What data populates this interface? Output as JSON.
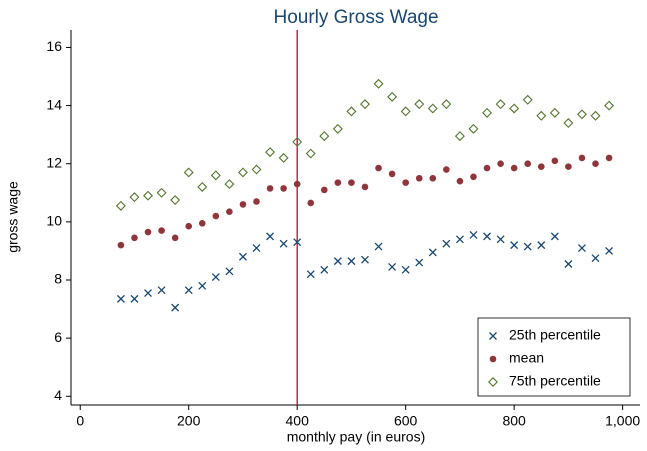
{
  "chart_data": {
    "type": "scatter",
    "title": "Hourly Gross Wage",
    "x_label": "monthly pay (in euros)",
    "y_label": "gross wage",
    "x": [
      75,
      100,
      125,
      150,
      175,
      200,
      225,
      250,
      275,
      300,
      325,
      350,
      375,
      400,
      425,
      450,
      475,
      500,
      525,
      550,
      575,
      600,
      625,
      650,
      675,
      700,
      725,
      750,
      775,
      800,
      825,
      850,
      875,
      900,
      925,
      950,
      975
    ],
    "series": [
      {
        "name": "25th percentile",
        "color": "#1a476f",
        "marker": "x",
        "values": [
          7.35,
          7.35,
          7.55,
          7.65,
          7.05,
          7.65,
          7.8,
          8.1,
          8.3,
          8.8,
          9.1,
          9.5,
          9.25,
          9.3,
          8.2,
          8.35,
          8.65,
          8.65,
          8.7,
          9.15,
          8.45,
          8.35,
          8.6,
          8.95,
          9.25,
          9.4,
          9.55,
          9.5,
          9.4,
          9.2,
          9.15,
          9.2,
          9.5,
          8.55,
          9.1,
          8.75,
          9.0
        ]
      },
      {
        "name": "mean",
        "color": "#90353b",
        "marker": "circle",
        "values": [
          9.2,
          9.45,
          9.65,
          9.7,
          9.45,
          9.85,
          9.95,
          10.2,
          10.35,
          10.6,
          10.7,
          11.15,
          11.15,
          11.3,
          10.65,
          11.1,
          11.35,
          11.35,
          11.2,
          11.85,
          11.65,
          11.35,
          11.5,
          11.5,
          11.8,
          11.4,
          11.55,
          11.85,
          12.0,
          11.85,
          12.0,
          11.9,
          12.1,
          11.9,
          12.2,
          12.0,
          12.2
        ]
      },
      {
        "name": "75th percentile",
        "color": "#55752f",
        "marker": "diamond",
        "values": [
          10.55,
          10.85,
          10.9,
          11.0,
          10.75,
          11.7,
          11.2,
          11.6,
          11.3,
          11.7,
          11.8,
          12.4,
          12.2,
          12.75,
          12.35,
          12.95,
          13.2,
          13.8,
          14.05,
          14.75,
          14.3,
          13.8,
          14.05,
          13.9,
          14.05,
          12.95,
          13.2,
          13.75,
          14.05,
          13.9,
          14.2,
          13.65,
          13.75,
          13.4,
          13.7,
          13.65,
          14.0
        ]
      }
    ],
    "xlim": [
      -17,
      1032
    ],
    "ylim": [
      3.7,
      16.6
    ],
    "xticks": [
      0,
      200,
      400,
      600,
      800,
      {
        "value": 1000,
        "label": "1,000"
      }
    ],
    "yticks": [
      4,
      6,
      8,
      10,
      12,
      14,
      16
    ],
    "vline": 400,
    "vline_color": "#c10534",
    "grid": false,
    "legend": "lower right"
  }
}
